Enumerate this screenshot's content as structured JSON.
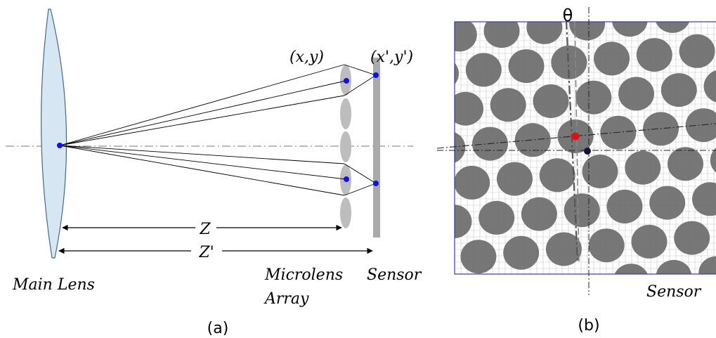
{
  "panel_a": {
    "caption": "(a)",
    "labels": {
      "main_lens": "Main Lens",
      "microlens_line1": "Microlens",
      "microlens_line2": "Array",
      "sensor": "Sensor",
      "xy": "(x,y)",
      "xy_prime": "(x',y')",
      "z": "Z",
      "z_prime": "Z'"
    }
  },
  "panel_b": {
    "caption": "(b)",
    "labels": {
      "theta": "θ",
      "sensor": "Sensor"
    }
  },
  "colors": {
    "lens_fill": "#d6e6f2",
    "lens_stroke": "#456a85",
    "microlens": "#bdbdbd",
    "sensor_bar": "#aaaaaa",
    "point_blue": "#1010ee",
    "point_red": "#e01010",
    "point_dark": "#14143c",
    "grid_border": "#3a3aa0",
    "grid_line": "#c8c8c8",
    "disc": "#707070"
  }
}
